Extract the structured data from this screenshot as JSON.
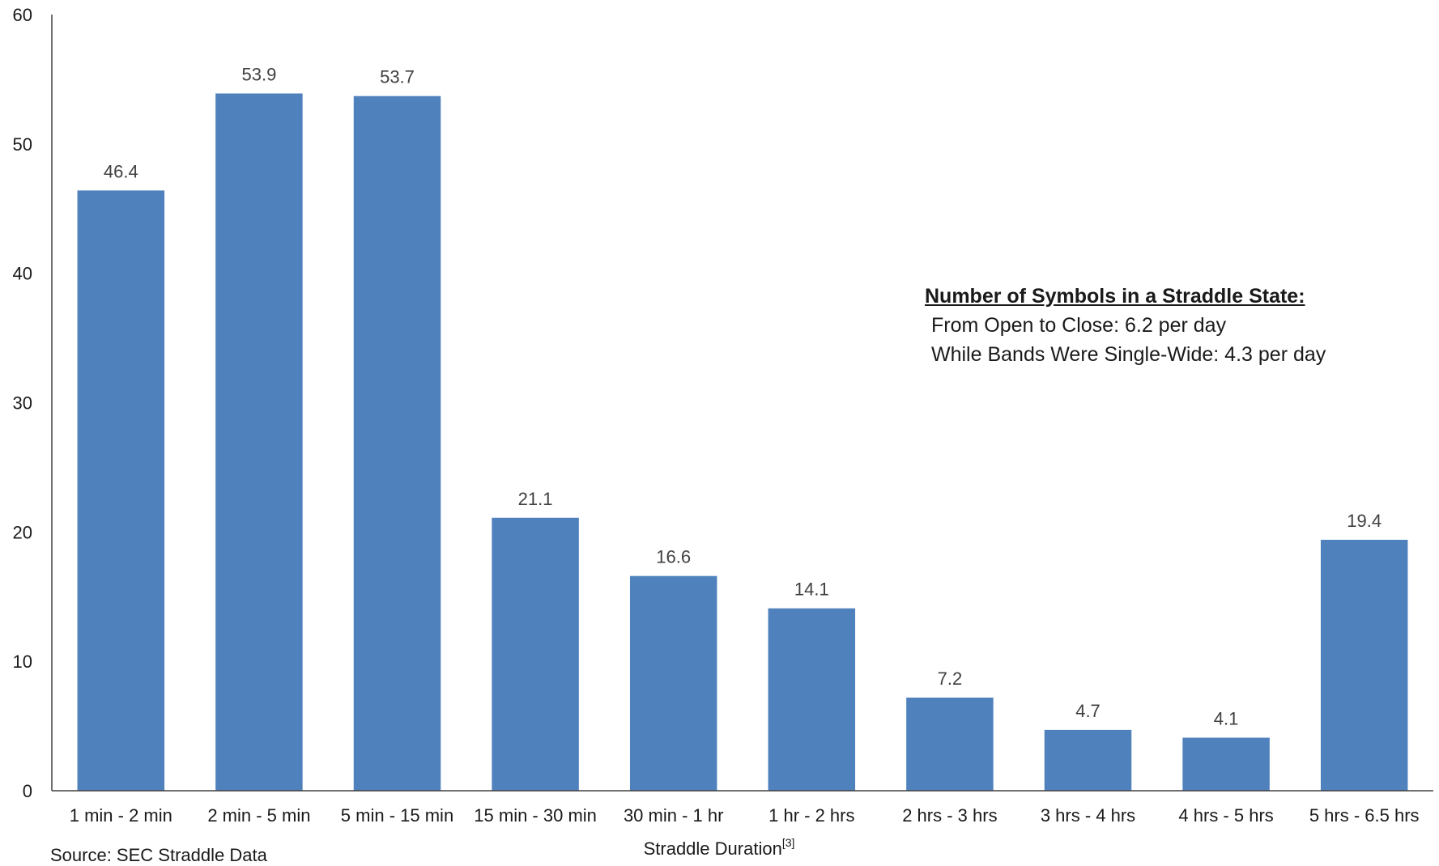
{
  "chart_data": {
    "type": "bar",
    "categories": [
      "1 min - 2 min",
      "2 min - 5 min",
      "5 min - 15 min",
      "15 min - 30 min",
      "30 min - 1 hr",
      "1 hr - 2 hrs",
      "2 hrs - 3 hrs",
      "3 hrs - 4 hrs",
      "4 hrs - 5 hrs",
      "5 hrs - 6.5 hrs"
    ],
    "values": [
      46.4,
      53.9,
      53.7,
      21.1,
      16.6,
      14.1,
      7.2,
      4.7,
      4.1,
      19.4
    ],
    "data_labels": [
      "46.4",
      "53.9",
      "53.7",
      "21.1",
      "16.6",
      "14.1",
      "7.2",
      "4.7",
      "4.1",
      "19.4"
    ],
    "xlabel": "Straddle Duration",
    "xlabel_superscript": "[3]",
    "ylabel": "",
    "ylim": [
      0,
      60
    ],
    "yticks": [
      "0",
      "10",
      "20",
      "30",
      "40",
      "50",
      "60"
    ],
    "grid": false,
    "bar_color": "#4F81BD",
    "annotation": {
      "title": "Number of Symbols in a Straddle State:",
      "lines": [
        "From Open to Close: 6.2 per day",
        "While Bands Were Single-Wide: 4.3 per day"
      ]
    },
    "source": "Source: SEC Straddle Data"
  }
}
